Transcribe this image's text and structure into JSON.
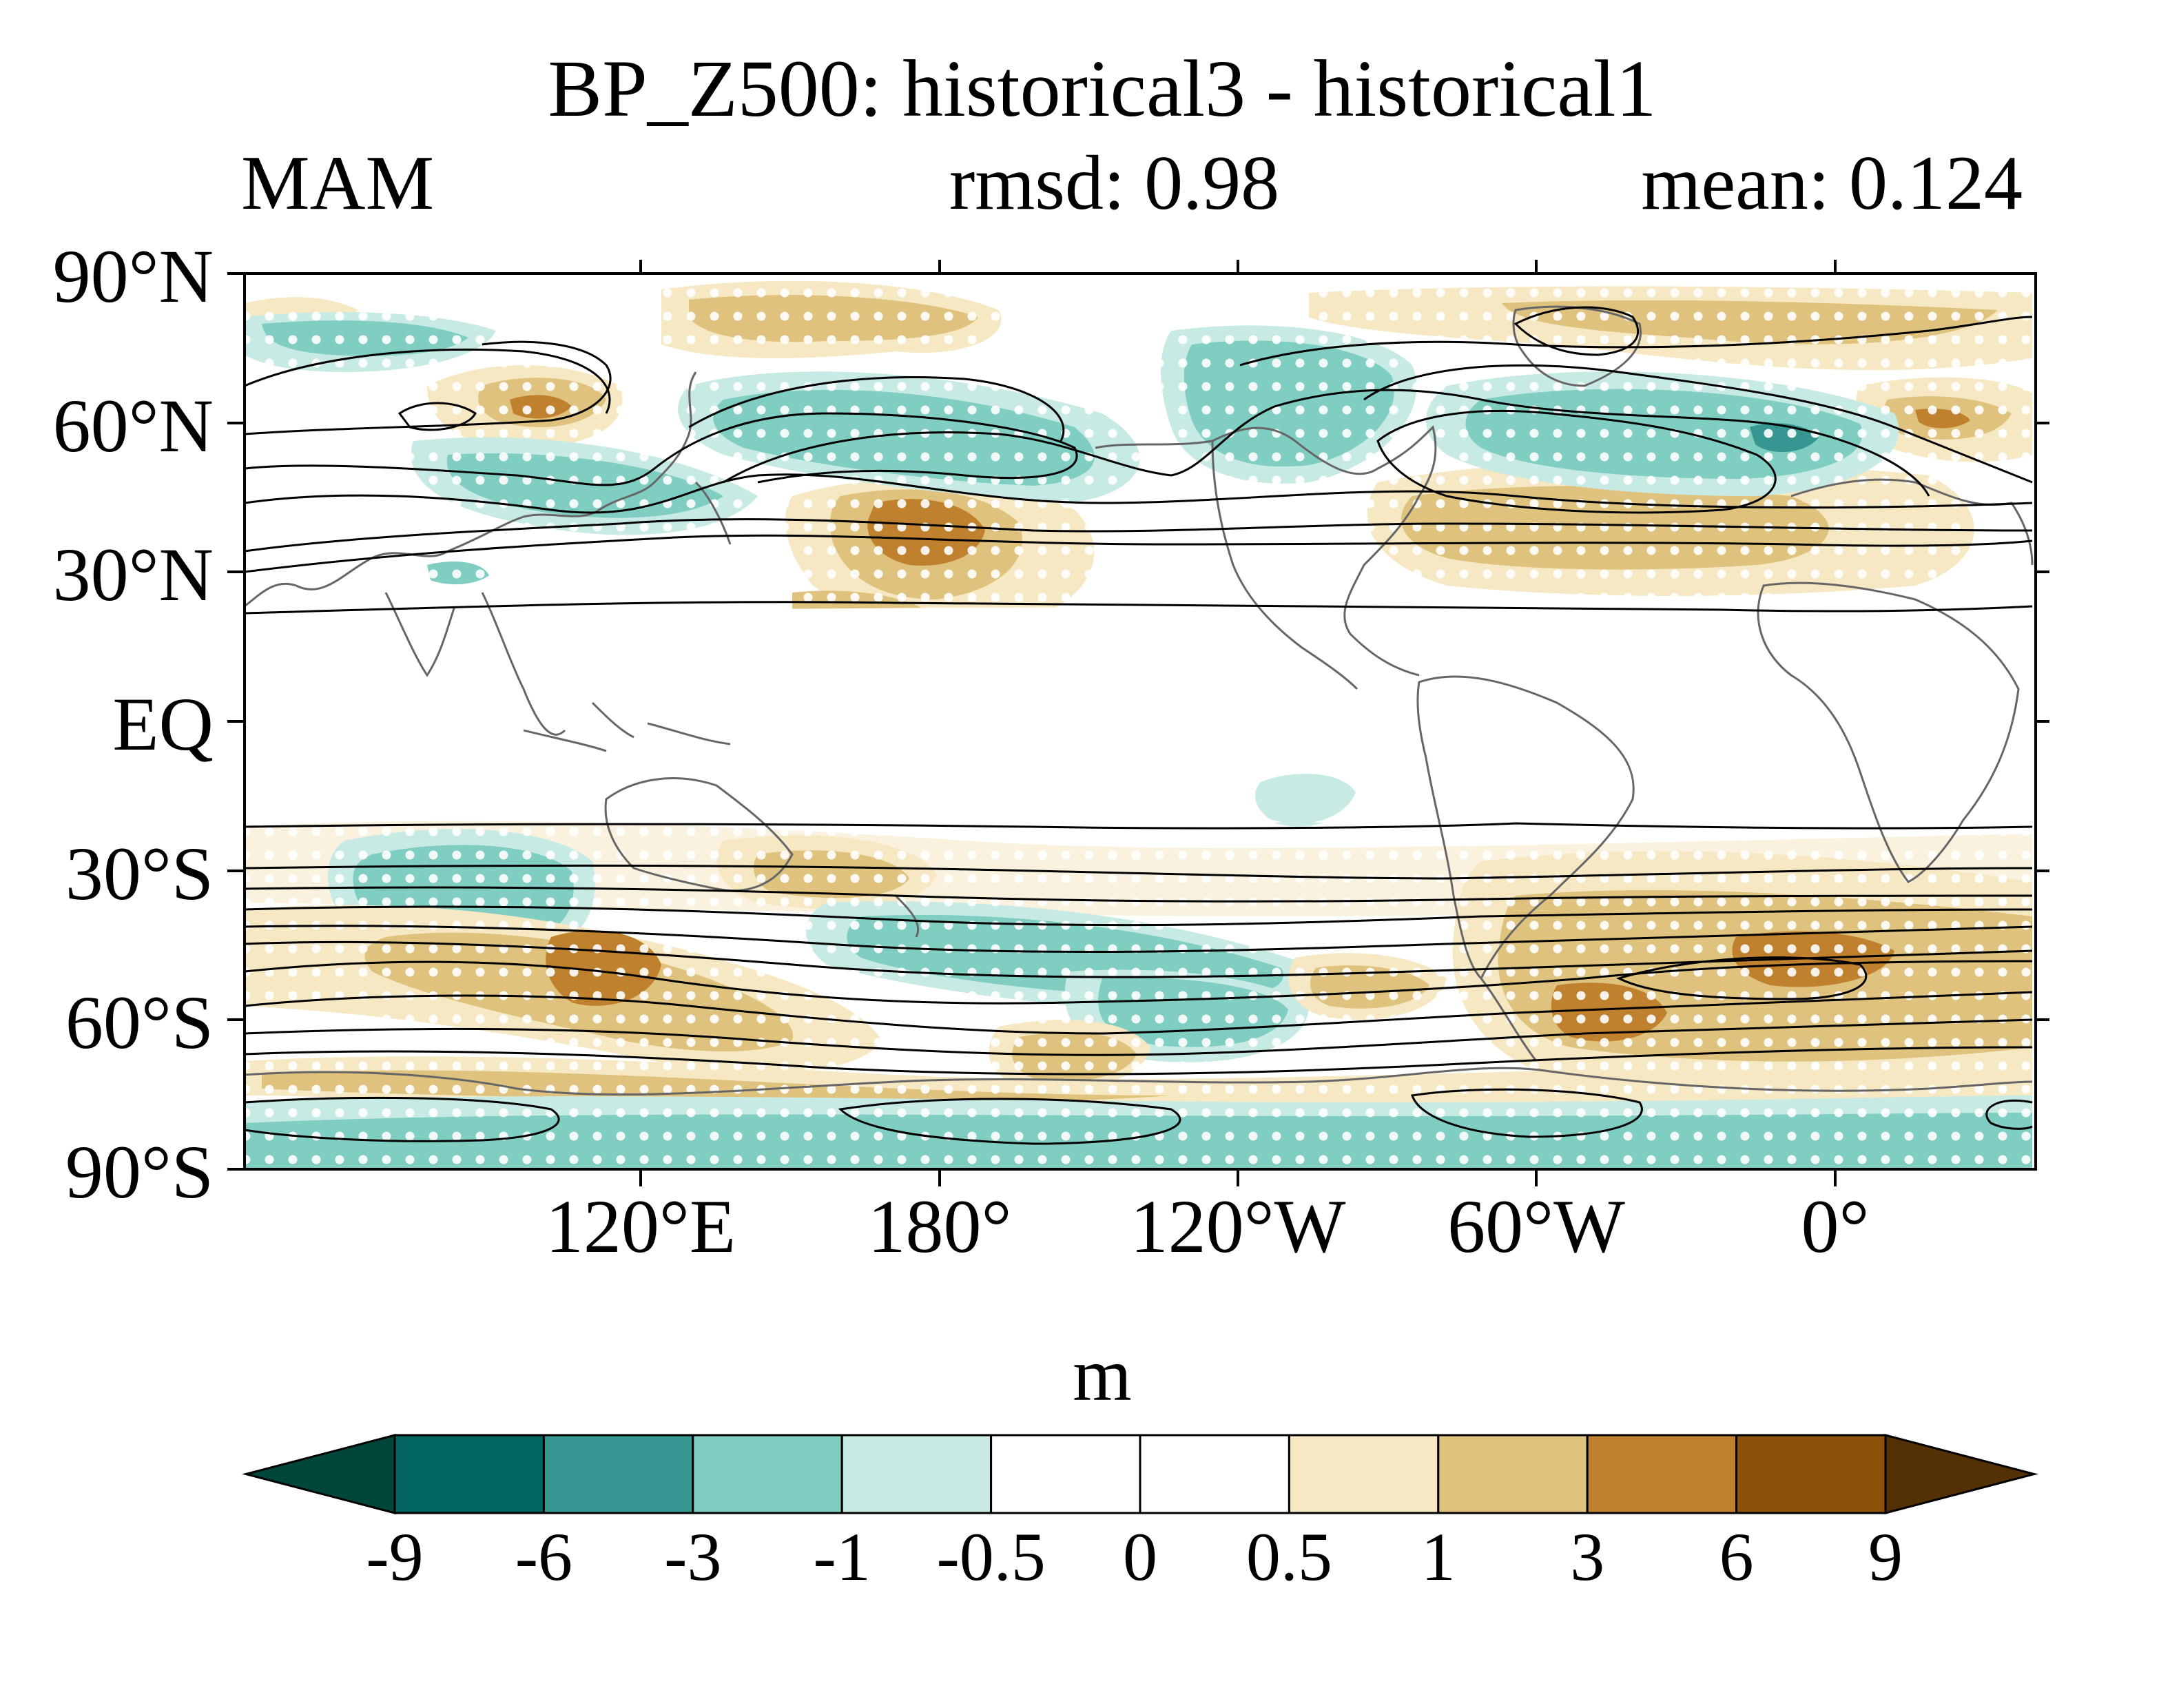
{
  "figure": {
    "title": "BP_Z500: historical3 - historical1",
    "season": "MAM",
    "rmsd_label": "rmsd: 0.98",
    "mean_label": "mean: 0.124",
    "units": "m"
  },
  "map": {
    "lat_labels": [
      "90°N",
      "60°N",
      "30°N",
      "EQ",
      "30°S",
      "60°S",
      "90°S"
    ],
    "lon_labels": [
      "120°E",
      "180°",
      "120°W",
      "60°W",
      "0°"
    ],
    "colors": {
      "coast": "#666666",
      "contour": "#000000",
      "stipple": "#ffffff"
    }
  },
  "colorbar": {
    "levels": [
      "-9",
      "-6",
      "-3",
      "-1",
      "-0.5",
      "0",
      "0.5",
      "1",
      "3",
      "6",
      "9"
    ],
    "colors": [
      "#01463b",
      "#01665e",
      "#35978f",
      "#80cdc1",
      "#c7eae5",
      "#ffffff",
      "#ffffff",
      "#f6e8c3",
      "#dfc27d",
      "#bf812d",
      "#8c510a",
      "#543005"
    ]
  }
}
